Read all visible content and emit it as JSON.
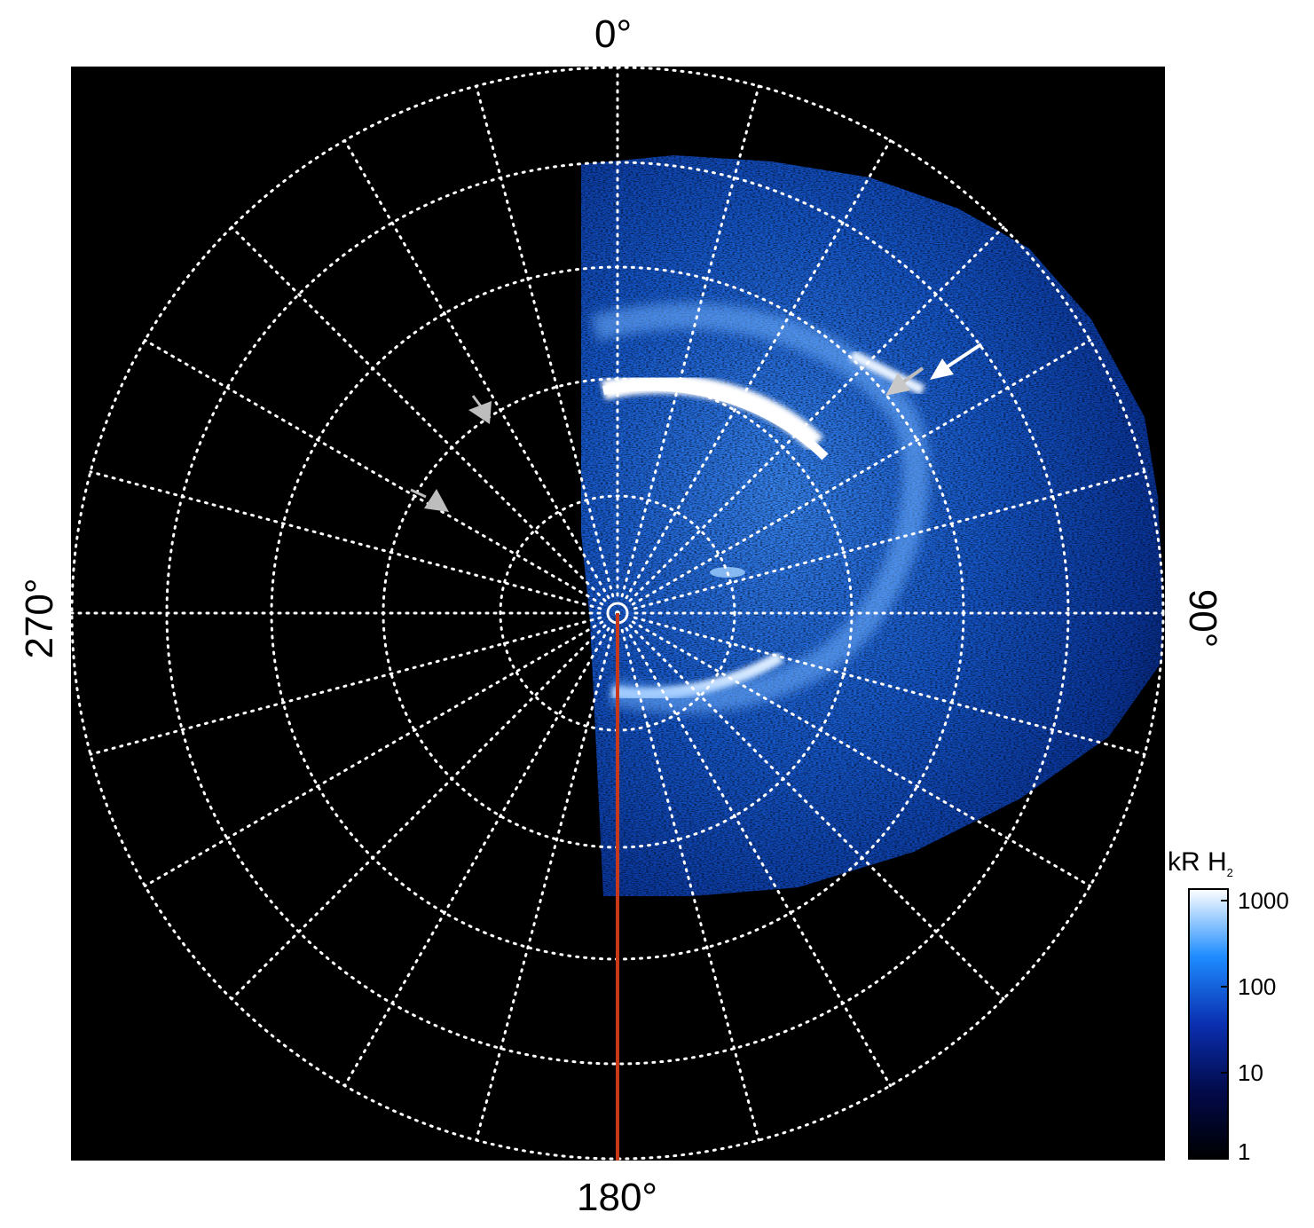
{
  "labels": {
    "top": "0°",
    "right": "90°",
    "bottom": "180°",
    "left": "270°"
  },
  "colorbar": {
    "title_main": "kR H",
    "title_sub": "2",
    "ticks": [
      "1000",
      "100",
      "10",
      "1"
    ],
    "scale": "log"
  },
  "colors": {
    "background": "#000000",
    "grid": "#ffffff",
    "meridian_line": "#c8381a",
    "aurora_low": "#0a2a8c",
    "aurora_mid": "#1e78ff",
    "aurora_high": "#ffffff",
    "arrow_white": "#ffffff",
    "arrow_grey": "#bdbdbd"
  }
}
